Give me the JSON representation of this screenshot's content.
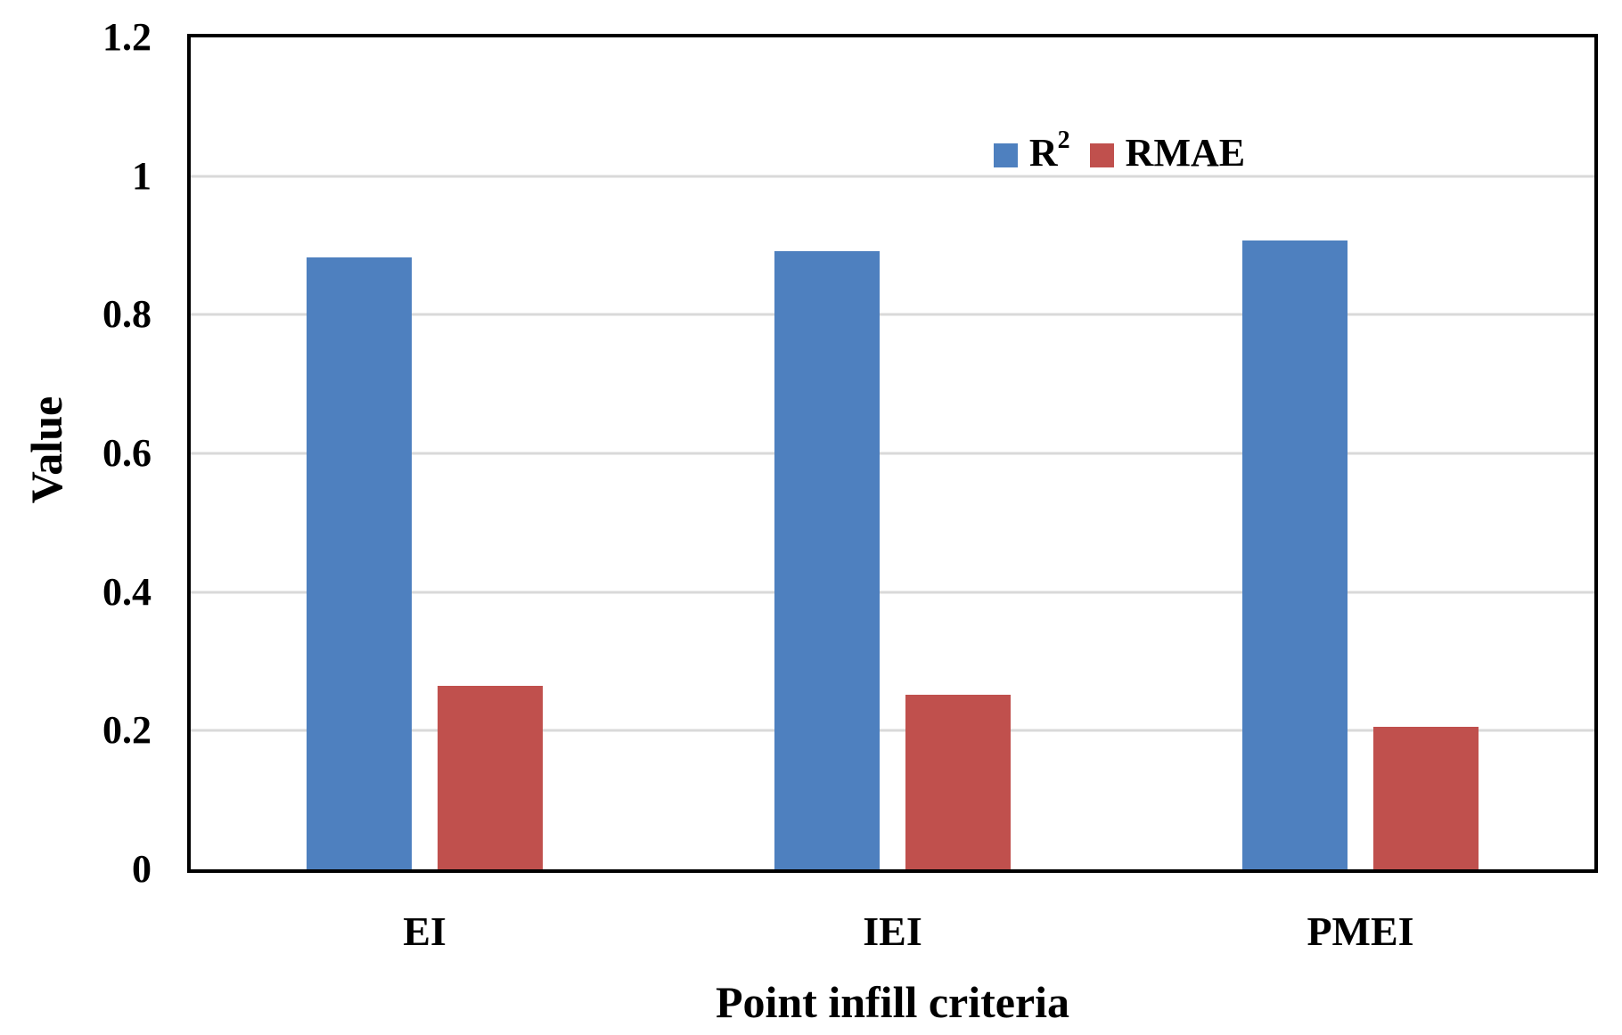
{
  "chart_data": {
    "type": "bar",
    "title": "",
    "categories": [
      "EI",
      "IEI",
      "PMEI"
    ],
    "series": [
      {
        "id": "r2",
        "name": "R²",
        "color": "#4E80BF",
        "values": [
          0.883,
          0.892,
          0.907
        ]
      },
      {
        "id": "rmae",
        "name": "RMAE",
        "color": "#C0504D",
        "values": [
          0.265,
          0.252,
          0.205
        ]
      }
    ],
    "xlabel": "Point infill criteria",
    "ylabel": "Value",
    "ylim": [
      0,
      1.2
    ],
    "grid": true,
    "legend_position": "top-right-inside"
  },
  "y_axis": {
    "tick_values": [
      1.2,
      1,
      0.8,
      0.6,
      0.4,
      0.2,
      0
    ],
    "tick_labels": [
      "1.2",
      "1",
      "0.8",
      "0.6",
      "0.4",
      "0.2",
      "0"
    ]
  },
  "legend": {
    "items": [
      {
        "label": "R",
        "sup": "2",
        "color": "#4E80BF"
      },
      {
        "label": "RMAE",
        "sup": "",
        "color": "#C0504D"
      }
    ]
  },
  "colors": {
    "gridline": "#d9d9d9",
    "axis": "#000000",
    "background": "#ffffff"
  }
}
